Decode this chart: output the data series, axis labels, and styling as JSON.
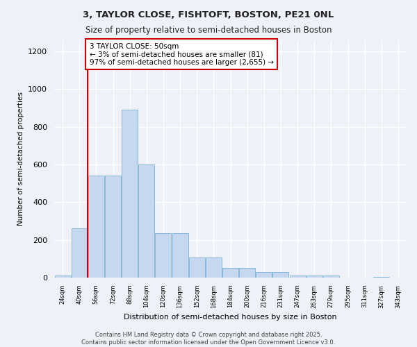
{
  "title1": "3, TAYLOR CLOSE, FISHTOFT, BOSTON, PE21 0NL",
  "title2": "Size of property relative to semi-detached houses in Boston",
  "xlabel": "Distribution of semi-detached houses by size in Boston",
  "ylabel": "Number of semi-detached properties",
  "bin_labels": [
    "24sqm",
    "40sqm",
    "56sqm",
    "72sqm",
    "88sqm",
    "104sqm",
    "120sqm",
    "136sqm",
    "152sqm",
    "168sqm",
    "184sqm",
    "200sqm",
    "216sqm",
    "231sqm",
    "247sqm",
    "263sqm",
    "279sqm",
    "295sqm",
    "311sqm",
    "327sqm",
    "343sqm"
  ],
  "bar_heights": [
    10,
    260,
    540,
    540,
    890,
    600,
    235,
    235,
    105,
    105,
    50,
    50,
    30,
    30,
    10,
    10,
    10,
    0,
    0,
    5,
    0
  ],
  "bar_color": "#C5D8F0",
  "bar_edge_color": "#7AAFD4",
  "vline_x": 1.5,
  "vline_color": "#CC0000",
  "annotation_text": "3 TAYLOR CLOSE: 50sqm\n← 3% of semi-detached houses are smaller (81)\n97% of semi-detached houses are larger (2,655) →",
  "annotation_box_color": "#FFFFFF",
  "annotation_box_edge": "#CC0000",
  "ylim": [
    0,
    1260
  ],
  "yticks": [
    0,
    200,
    400,
    600,
    800,
    1000,
    1200
  ],
  "footer_text": "Contains HM Land Registry data © Crown copyright and database right 2025.\nContains public sector information licensed under the Open Government Licence v3.0.",
  "bg_color": "#EEF2F8",
  "plot_bg_color": "#EEF2F8"
}
